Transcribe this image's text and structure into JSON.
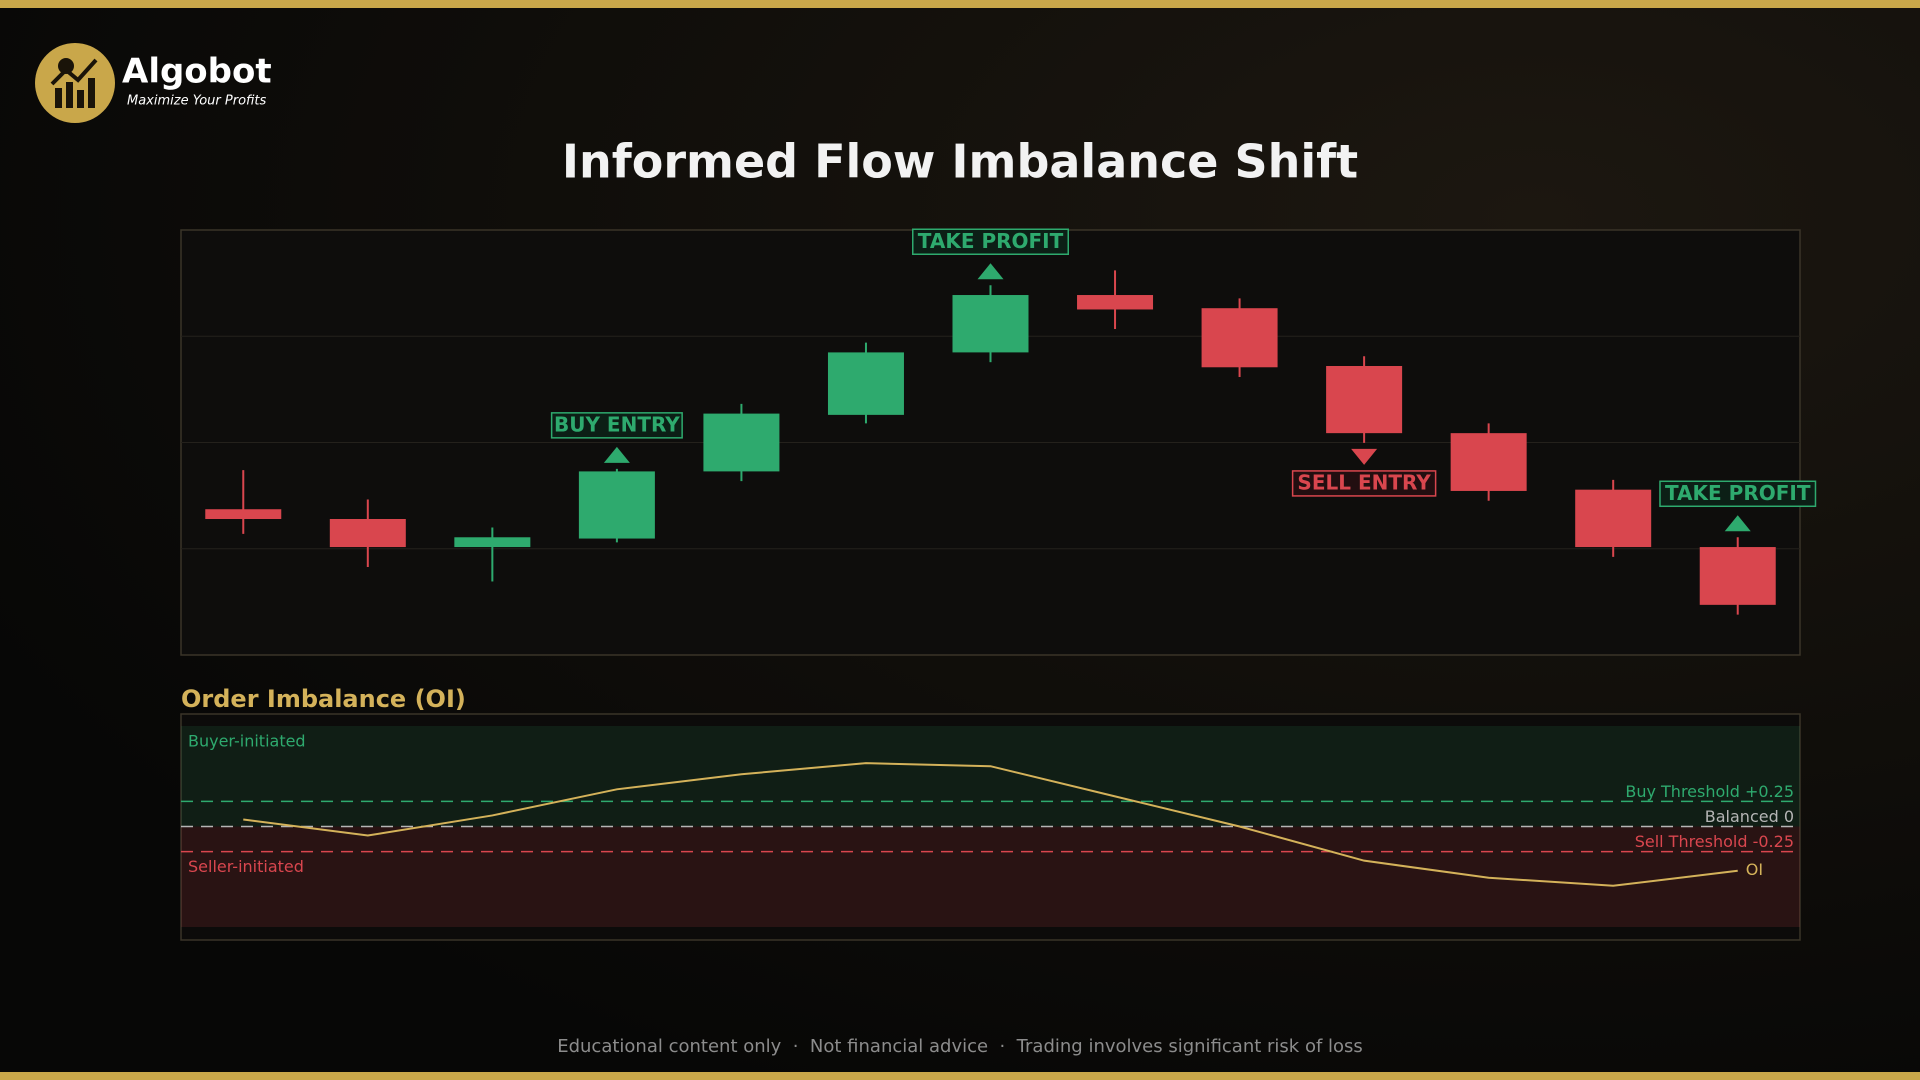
{
  "header": {
    "brand": "Algobot",
    "tagline": "Maximize Your Profits"
  },
  "chart_data": [
    {
      "type": "candlestick",
      "title": "Informed Flow Imbalance Shift",
      "open": [
        34.3,
        32.0,
        25.4,
        27.4,
        43.2,
        56.5,
        71.2,
        84.7,
        81.6,
        68.0,
        52.2,
        38.9,
        25.4
      ],
      "high": [
        43.5,
        36.6,
        30.0,
        43.8,
        59.1,
        73.5,
        87.0,
        90.5,
        83.9,
        70.3,
        54.5,
        41.2,
        27.7
      ],
      "low": [
        28.5,
        20.7,
        17.3,
        26.5,
        40.9,
        54.5,
        68.9,
        76.7,
        65.4,
        49.9,
        36.3,
        23.1,
        9.5
      ],
      "close": [
        32.0,
        25.4,
        27.7,
        43.2,
        56.8,
        71.2,
        84.7,
        81.3,
        67.7,
        52.2,
        38.6,
        25.4,
        11.8
      ],
      "up_color": "#2eaa6e",
      "down_color": "#d9464e",
      "ylim": [
        0,
        100
      ],
      "grid": true,
      "annotations": [
        {
          "text": "BUY ENTRY",
          "candle": 3,
          "kind": "buy"
        },
        {
          "text": "TAKE PROFIT",
          "candle": 6,
          "kind": "buy"
        },
        {
          "text": "SELL ENTRY",
          "candle": 9,
          "kind": "sell"
        },
        {
          "text": "TAKE PROFIT",
          "candle": 12,
          "kind": "buy"
        }
      ]
    },
    {
      "type": "line",
      "title": "Order Imbalance (OI)",
      "series": [
        {
          "name": "OI",
          "color": "#d4b25a",
          "values": [
            0.07,
            -0.09,
            0.11,
            0.37,
            0.52,
            0.63,
            0.6,
            0.3,
            0.0,
            -0.34,
            -0.51,
            -0.59,
            -0.44
          ]
        }
      ],
      "ylim": [
        -1,
        1
      ],
      "reference_lines": [
        {
          "value": 0.25,
          "label": "Buy Threshold +0.25",
          "color": "#2eaa6e"
        },
        {
          "value": 0,
          "label": "Balanced 0",
          "color": "#b5b5b5"
        },
        {
          "value": -0.25,
          "label": "Sell Threshold -0.25",
          "color": "#d9464e"
        }
      ],
      "zones": [
        {
          "label": "Buyer-initiated",
          "color": "#2eaa6e"
        },
        {
          "label": "Seller-initiated",
          "color": "#d9464e"
        }
      ]
    }
  ],
  "footer": "Educational content only  ·  Not financial advice  ·  Trading involves significant risk of loss"
}
